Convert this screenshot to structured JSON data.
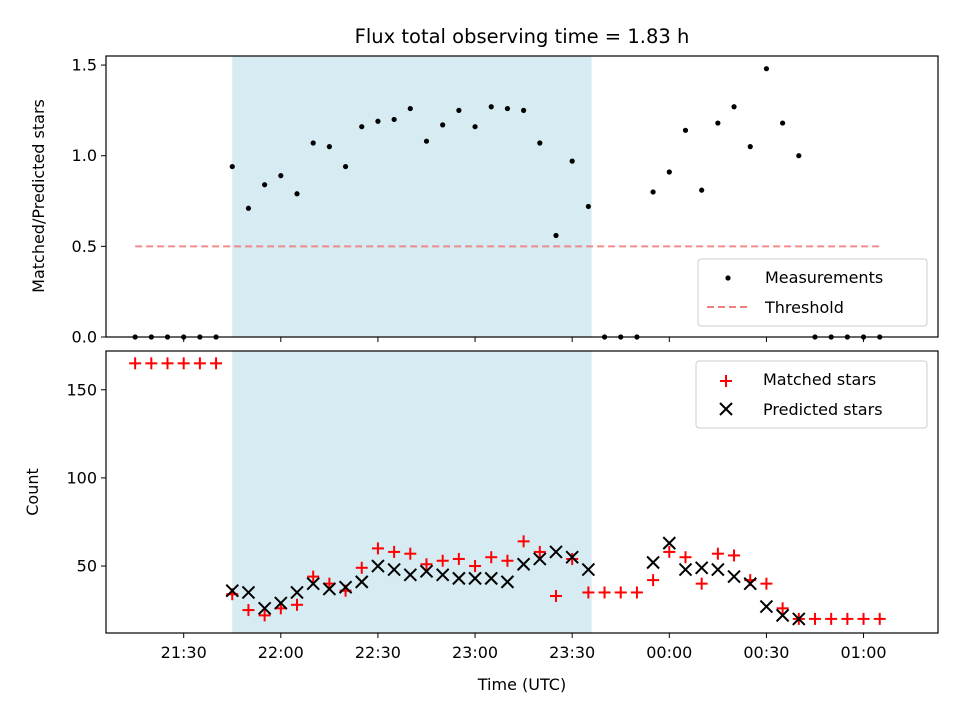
{
  "chart_data": [
    {
      "type": "scatter",
      "title": "Flux total observing time = 1.83 h",
      "ylabel": "Matched/Predicted stars",
      "xlabel": "",
      "ylim": [
        0,
        1.55
      ],
      "yticks": [
        0.0,
        0.5,
        1.0,
        1.5
      ],
      "ytick_labels": [
        "0.0",
        "0.5",
        "1.0",
        "1.5"
      ],
      "shaded_interval": [
        "21:45",
        "23:36"
      ],
      "threshold": 0.5,
      "legend_position": "lower right",
      "series": [
        {
          "name": "Measurements",
          "color": "#000000",
          "marker": "dot",
          "x": [
            "21:15",
            "21:20",
            "21:25",
            "21:30",
            "21:35",
            "21:40",
            "21:45",
            "21:50",
            "21:55",
            "22:00",
            "22:05",
            "22:10",
            "22:15",
            "22:20",
            "22:25",
            "22:30",
            "22:35",
            "22:40",
            "22:45",
            "22:50",
            "22:55",
            "23:00",
            "23:05",
            "23:10",
            "23:15",
            "23:20",
            "23:25",
            "23:30",
            "23:35",
            "23:40",
            "23:45",
            "23:50",
            "23:55",
            "00:00",
            "00:05",
            "00:10",
            "00:15",
            "00:20",
            "00:25",
            "00:30",
            "00:35",
            "00:40",
            "00:45",
            "00:50",
            "00:55",
            "01:00",
            "01:05"
          ],
          "y": [
            0.0,
            0.0,
            0.0,
            0.0,
            0.0,
            0.0,
            0.94,
            0.71,
            0.84,
            0.89,
            0.79,
            1.07,
            1.05,
            0.94,
            1.16,
            1.19,
            1.2,
            1.26,
            1.08,
            1.17,
            1.25,
            1.16,
            1.27,
            1.26,
            1.25,
            1.07,
            0.56,
            0.97,
            0.72,
            0.0,
            0.0,
            0.0,
            0.8,
            0.91,
            1.14,
            0.81,
            1.18,
            1.27,
            1.05,
            1.48,
            1.18,
            1.0,
            0.0,
            0.0,
            0.0,
            0.0,
            0.0
          ]
        },
        {
          "name": "Threshold",
          "color": "#f08080",
          "style": "dashed",
          "x": [
            "21:15",
            "01:05"
          ],
          "y": [
            0.5,
            0.5
          ]
        }
      ]
    },
    {
      "type": "scatter",
      "title": "",
      "xlabel": "Time (UTC)",
      "ylabel": "Count",
      "ylim": [
        12,
        172
      ],
      "yticks": [
        50,
        100,
        150
      ],
      "ytick_labels": [
        "50",
        "100",
        "150"
      ],
      "xticks": [
        "21:30",
        "22:00",
        "22:30",
        "23:00",
        "23:30",
        "00:00",
        "00:30",
        "01:00"
      ],
      "xlim": [
        "21:06",
        "01:23"
      ],
      "shaded_interval": [
        "21:45",
        "23:36"
      ],
      "legend_position": "upper right",
      "series": [
        {
          "name": "Matched stars",
          "color": "#ff0000",
          "marker": "plus",
          "x": [
            "21:15",
            "21:20",
            "21:25",
            "21:30",
            "21:35",
            "21:40",
            "21:45",
            "21:50",
            "21:55",
            "22:00",
            "22:05",
            "22:10",
            "22:15",
            "22:20",
            "22:25",
            "22:30",
            "22:35",
            "22:40",
            "22:45",
            "22:50",
            "22:55",
            "23:00",
            "23:05",
            "23:10",
            "23:15",
            "23:20",
            "23:25",
            "23:30",
            "23:35",
            "23:40",
            "23:45",
            "23:50",
            "23:55",
            "00:00",
            "00:05",
            "00:10",
            "00:15",
            "00:20",
            "00:25",
            "00:30",
            "00:35",
            "00:40",
            "00:45",
            "00:50",
            "00:55",
            "01:00",
            "01:05"
          ],
          "y": [
            165,
            165,
            165,
            165,
            165,
            165,
            34,
            25,
            22,
            26,
            28,
            44,
            40,
            36,
            49,
            60,
            58,
            57,
            51,
            53,
            54,
            50,
            55,
            53,
            64,
            58,
            33,
            54,
            35,
            35,
            35,
            35,
            42,
            58,
            55,
            40,
            57,
            56,
            42,
            40,
            26,
            20,
            20,
            20,
            20,
            20,
            20
          ]
        },
        {
          "name": "Predicted stars",
          "color": "#000000",
          "marker": "x",
          "x": [
            "21:45",
            "21:50",
            "21:55",
            "22:00",
            "22:05",
            "22:10",
            "22:15",
            "22:20",
            "22:25",
            "22:30",
            "22:35",
            "22:40",
            "22:45",
            "22:50",
            "22:55",
            "23:00",
            "23:05",
            "23:10",
            "23:15",
            "23:20",
            "23:25",
            "23:30",
            "23:35",
            "23:55",
            "00:00",
            "00:05",
            "00:10",
            "00:15",
            "00:20",
            "00:25",
            "00:30",
            "00:35",
            "00:40"
          ],
          "y": [
            36,
            35,
            26,
            29,
            35,
            40,
            37,
            38,
            41,
            50,
            48,
            45,
            47,
            45,
            43,
            43,
            43,
            41,
            51,
            54,
            58,
            55,
            48,
            52,
            63,
            48,
            49,
            48,
            44,
            40,
            27,
            22,
            20
          ]
        }
      ]
    }
  ]
}
